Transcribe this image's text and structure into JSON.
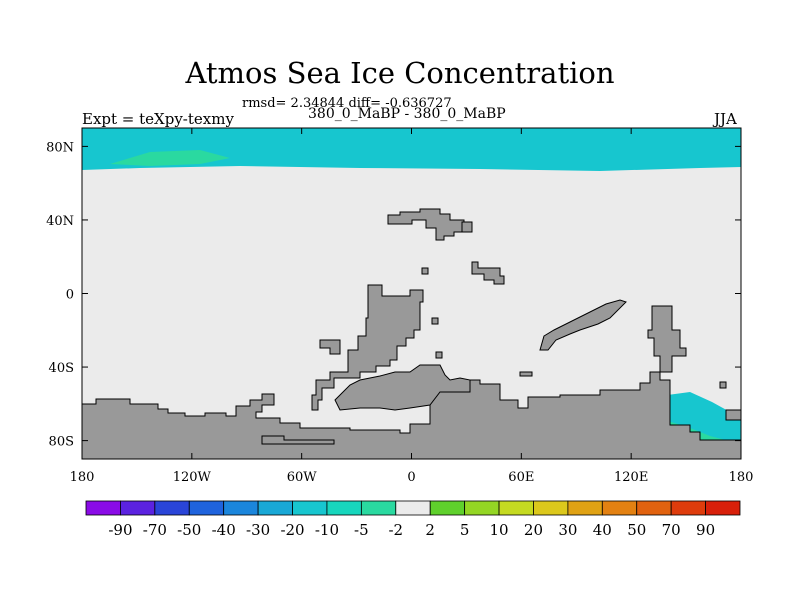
{
  "chart_data": {
    "type": "heatmap",
    "title": "Atmos Sea Ice Concentration",
    "stats_line": "rmsd= 2.34844  diff= -0.636727",
    "left_label": "Expt = teXpy-texmy",
    "subtitle": "380_0_MaBP - 380_0_MaBP",
    "right_label": "JJA",
    "x_range": [
      -180,
      180
    ],
    "y_range": [
      -90,
      90
    ],
    "x_ticks": [
      {
        "value": -180,
        "label": "180"
      },
      {
        "value": -120,
        "label": "120W"
      },
      {
        "value": -60,
        "label": "60W"
      },
      {
        "value": 0,
        "label": "0"
      },
      {
        "value": 60,
        "label": "60E"
      },
      {
        "value": 120,
        "label": "120E"
      },
      {
        "value": 180,
        "label": "180"
      }
    ],
    "y_ticks": [
      {
        "value": 80,
        "label": "80N"
      },
      {
        "value": 40,
        "label": "40N"
      },
      {
        "value": 0,
        "label": "0"
      },
      {
        "value": -40,
        "label": "40S"
      },
      {
        "value": -80,
        "label": "80S"
      }
    ],
    "colorbar": {
      "labels": [
        "-90",
        "-70",
        "-50",
        "-40",
        "-30",
        "-20",
        "-10",
        "-5",
        "-2",
        "2",
        "5",
        "10",
        "20",
        "30",
        "40",
        "50",
        "70",
        "90"
      ],
      "colors": [
        "#8a0be6",
        "#5b22e0",
        "#2a45d8",
        "#1f63dd",
        "#1b86dc",
        "#19a8d6",
        "#17c6cf",
        "#17d6bd",
        "#2ad9a0",
        "#ebebeb",
        "#5fd02c",
        "#94d624",
        "#c5da21",
        "#dcc81c",
        "#e0a214",
        "#e38112",
        "#e1620f",
        "#de3c0c",
        "#d8200a"
      ]
    },
    "field_values": {
      "arctic_band": "-10",
      "arctic_edge": "-5",
      "southern_fringe": "-5",
      "southern_band": "-10",
      "background": "-2 to 2"
    },
    "land_color": "#999999",
    "ocean_background": "#ebebeb"
  }
}
